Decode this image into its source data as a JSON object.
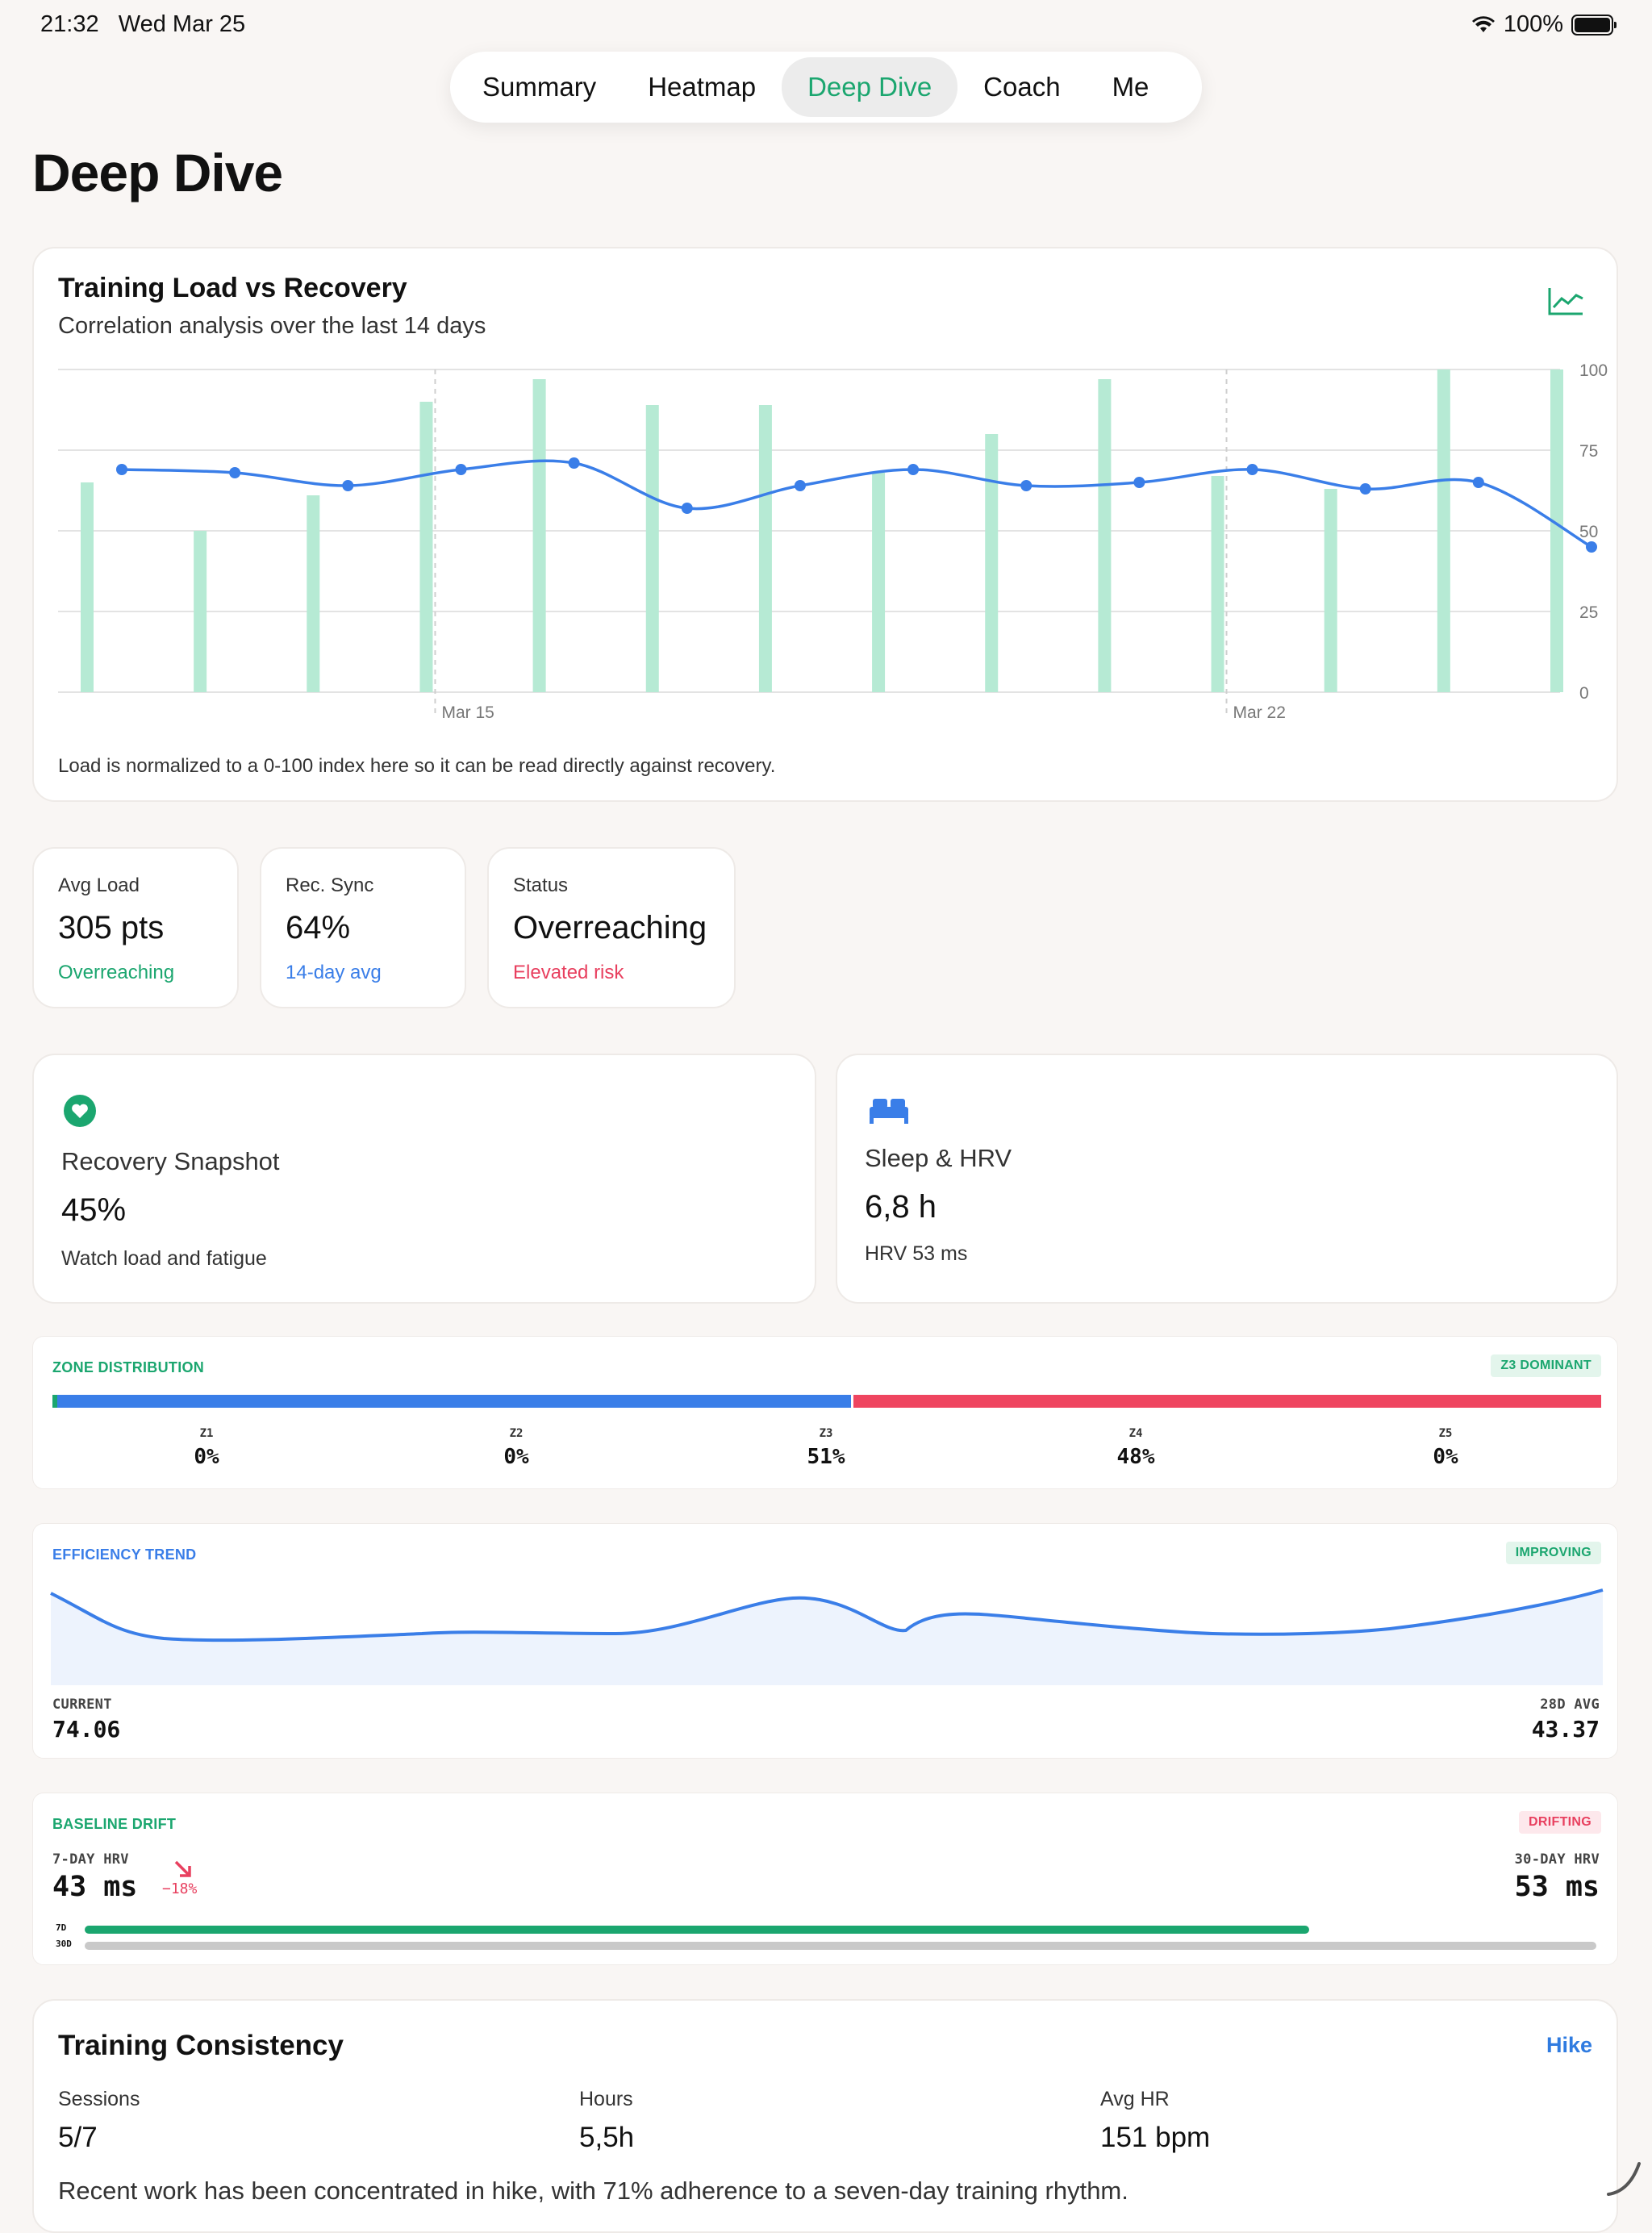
{
  "status_bar": {
    "time": "21:32",
    "date": "Wed Mar 25",
    "battery": "100%"
  },
  "tabs": [
    {
      "label": "Summary",
      "active": false
    },
    {
      "label": "Heatmap",
      "active": false
    },
    {
      "label": "Deep Dive",
      "active": true
    },
    {
      "label": "Coach",
      "active": false
    },
    {
      "label": "Me",
      "active": false
    }
  ],
  "page_title": "Deep Dive",
  "load_recovery": {
    "title": "Training Load vs Recovery",
    "subtitle": "Correlation analysis over the last 14 days",
    "note": "Load is normalized to a 0-100 index here so it can be read directly against recovery.",
    "icon": "chart-line-icon"
  },
  "chart_data": {
    "type": "bar",
    "title": "Training Load vs Recovery",
    "subtitle": "Correlation analysis over the last 14 days",
    "x_tick_labels": [
      "Mar 15",
      "Mar 22"
    ],
    "ylim": [
      0,
      100
    ],
    "y_ticks": [
      0,
      25,
      50,
      75,
      100
    ],
    "grid": true,
    "series": [
      {
        "kind": "bar",
        "color": "#b6ead4",
        "values": [
          65,
          50,
          61,
          90,
          97,
          89,
          89,
          68,
          80,
          97,
          67,
          63,
          100,
          100
        ]
      },
      {
        "kind": "line",
        "color": "#3a7ee8",
        "values": [
          69,
          68,
          64,
          69,
          71,
          57,
          64,
          69,
          64,
          65,
          69,
          63,
          65,
          45
        ]
      }
    ]
  },
  "stats": [
    {
      "label": "Avg Load",
      "value": "305 pts",
      "sub": "Overreaching",
      "sub_color": "#1ba66f"
    },
    {
      "label": "Rec. Sync",
      "value": "64%",
      "sub": "14-day avg",
      "sub_color": "#3a7ee8"
    },
    {
      "label": "Status",
      "value": "Overreaching",
      "sub": "Elevated risk",
      "sub_color": "#e8405f"
    }
  ],
  "recovery": {
    "name": "Recovery Snapshot",
    "value": "45%",
    "sub": "Watch load and fatigue",
    "icon": "heart-icon"
  },
  "sleep": {
    "name": "Sleep & HRV",
    "value": "6,8 h",
    "sub": "HRV 53 ms",
    "icon": "bed-icon"
  },
  "zones": {
    "label": "ZONE DISTRIBUTION",
    "badge": "Z3 DOMINANT",
    "items": [
      {
        "name": "Z1",
        "value": "0%",
        "fraction": 0.0
      },
      {
        "name": "Z2",
        "value": "0%",
        "fraction": 0.0
      },
      {
        "name": "Z3",
        "value": "51%",
        "fraction": 0.51
      },
      {
        "name": "Z4",
        "value": "48%",
        "fraction": 0.48
      },
      {
        "name": "Z5",
        "value": "0%",
        "fraction": 0.0
      }
    ]
  },
  "efficiency": {
    "label": "EFFICIENCY TREND",
    "badge": "IMPROVING",
    "current_label": "CURRENT",
    "current": "74.06",
    "avg_label": "28D AVG",
    "avg": "43.37"
  },
  "baseline": {
    "label": "BASELINE DRIFT",
    "badge": "DRIFTING",
    "hrv7_label": "7-DAY HRV",
    "hrv7": "43 ms",
    "change": "−18%",
    "hrv30_label": "30-DAY HRV",
    "hrv30": "53 ms",
    "bar7_label": "7D",
    "bar30_label": "30D",
    "ratio": 0.81
  },
  "consistency": {
    "title": "Training Consistency",
    "link": "Hike",
    "sessions_label": "Sessions",
    "sessions": "5/7",
    "hours_label": "Hours",
    "hours": "5,5h",
    "hr_label": "Avg HR",
    "hr": "151 bpm",
    "text": "Recent work has been concentrated in hike, with 71% adherence to a seven-day training rhythm."
  }
}
